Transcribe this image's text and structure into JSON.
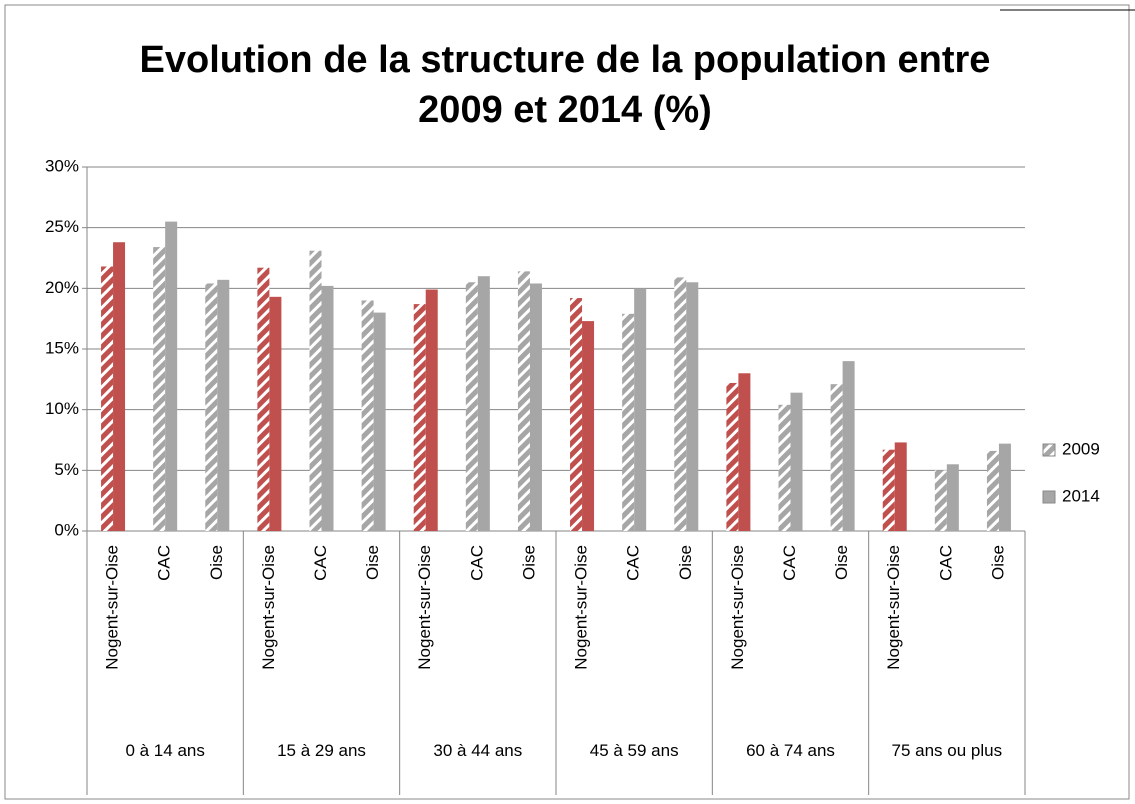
{
  "chart_data": {
    "type": "grouped_bar",
    "title": "Evolution de la structure de la population entre 2009 et 2014 (%)",
    "groups": [
      {
        "label": "0 à 14 ans",
        "categories": [
          "Nogent-sur-Oise",
          "CAC",
          "Oise"
        ]
      },
      {
        "label": "15 à 29 ans",
        "categories": [
          "Nogent-sur-Oise",
          "CAC",
          "Oise"
        ]
      },
      {
        "label": "30 à 44 ans",
        "categories": [
          "Nogent-sur-Oise",
          "CAC",
          "Oise"
        ]
      },
      {
        "label": "45 à 59 ans",
        "categories": [
          "Nogent-sur-Oise",
          "CAC",
          "Oise"
        ]
      },
      {
        "label": "60 à 74 ans",
        "categories": [
          "Nogent-sur-Oise",
          "CAC",
          "Oise"
        ]
      },
      {
        "label": "75 ans ou plus",
        "categories": [
          "Nogent-sur-Oise",
          "CAC",
          "Oise"
        ]
      }
    ],
    "category_colors": [
      "#c0504d",
      "#a6a6a6",
      "#a6a6a6"
    ],
    "series": [
      {
        "name": "2009",
        "color": "#a6a6a6",
        "pattern": "hatched",
        "values": [
          [
            21.8,
            23.4,
            20.4
          ],
          [
            21.7,
            23.1,
            19.0
          ],
          [
            18.7,
            20.5,
            21.4
          ],
          [
            19.2,
            17.9,
            20.9
          ],
          [
            12.2,
            10.4,
            12.1
          ],
          [
            6.7,
            5.0,
            6.6
          ]
        ]
      },
      {
        "name": "2014",
        "color": "#a6a6a6",
        "pattern": "solid",
        "values": [
          [
            23.8,
            25.5,
            20.7
          ],
          [
            19.3,
            20.2,
            18.0
          ],
          [
            19.9,
            21.0,
            20.4
          ],
          [
            17.3,
            20.0,
            20.5
          ],
          [
            13.0,
            11.4,
            14.0
          ],
          [
            7.3,
            5.5,
            7.2
          ]
        ]
      }
    ],
    "ylim": [
      0,
      30
    ],
    "yticks": [
      {
        "value": 0,
        "label": "0%"
      },
      {
        "value": 5,
        "label": "5%"
      },
      {
        "value": 10,
        "label": "10%"
      },
      {
        "value": 15,
        "label": "15%"
      },
      {
        "value": 20,
        "label": "20%"
      },
      {
        "value": 25,
        "label": "25%"
      },
      {
        "value": 30,
        "label": "30%"
      }
    ],
    "grid": true,
    "legend": "right"
  }
}
